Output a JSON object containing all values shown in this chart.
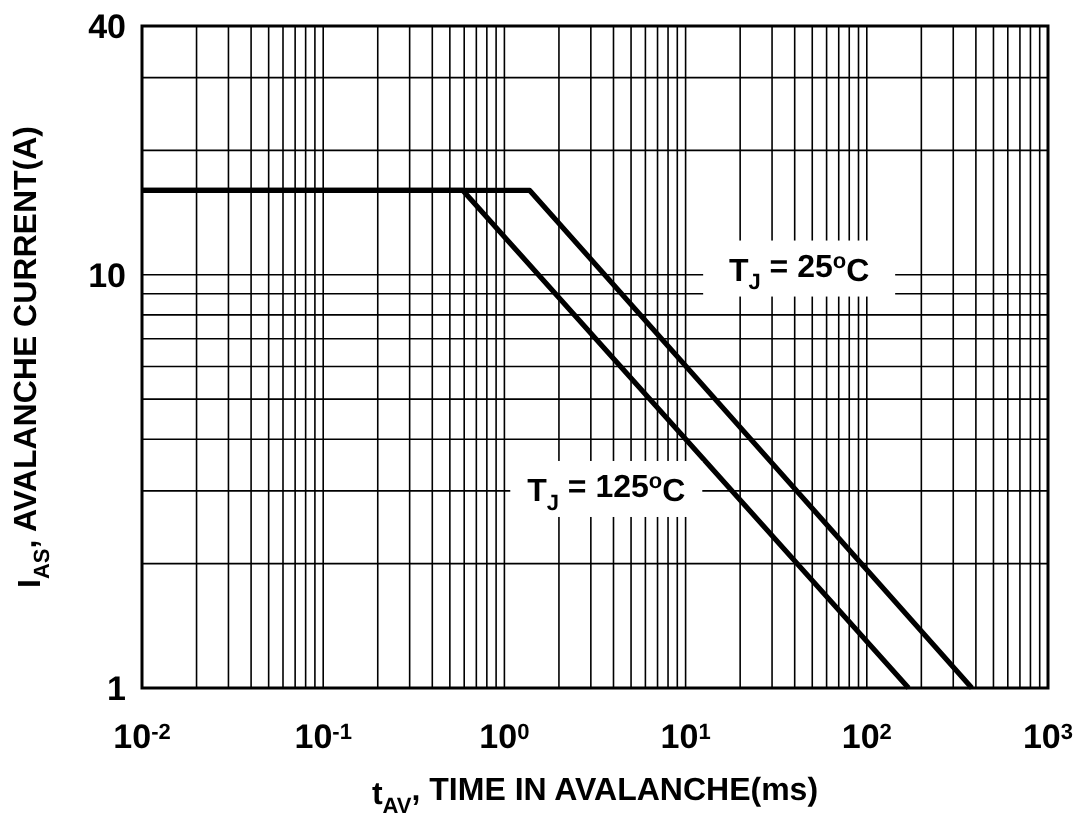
{
  "chart_data": {
    "type": "line",
    "xlabel": "t$_{AV}$, TIME IN AVALANCHE(ms)",
    "ylabel": "I$_{AS}$, AVALANCHE CURRENT(A)",
    "log": "xy",
    "grid": true,
    "line_style": "solid",
    "xlim": [
      0.01,
      1000
    ],
    "ylim": [
      1,
      40
    ],
    "xticks": [
      {
        "value": 0.01,
        "label": "10$^{-2}$"
      },
      {
        "value": 0.1,
        "label": "10$^{-1}$"
      },
      {
        "value": 1,
        "label": "10$^{0}$"
      },
      {
        "value": 10,
        "label": "10$^{1}$"
      },
      {
        "value": 100,
        "label": "10$^{2}$"
      },
      {
        "value": 1000,
        "label": "10$^{3}$"
      }
    ],
    "yticks": [
      1,
      10,
      40
    ],
    "series": [
      {
        "name": "T$_{J}$ = 25$^{o}$C",
        "color": "#000000",
        "x": [
          0.01,
          1.38,
          380
        ],
        "values": [
          16,
          16,
          1
        ]
      },
      {
        "name": "T$_{J}$ = 125$^{o}$C",
        "color": "#000000",
        "x": [
          0.01,
          0.59,
          170
        ],
        "values": [
          16,
          16,
          1
        ]
      }
    ]
  }
}
